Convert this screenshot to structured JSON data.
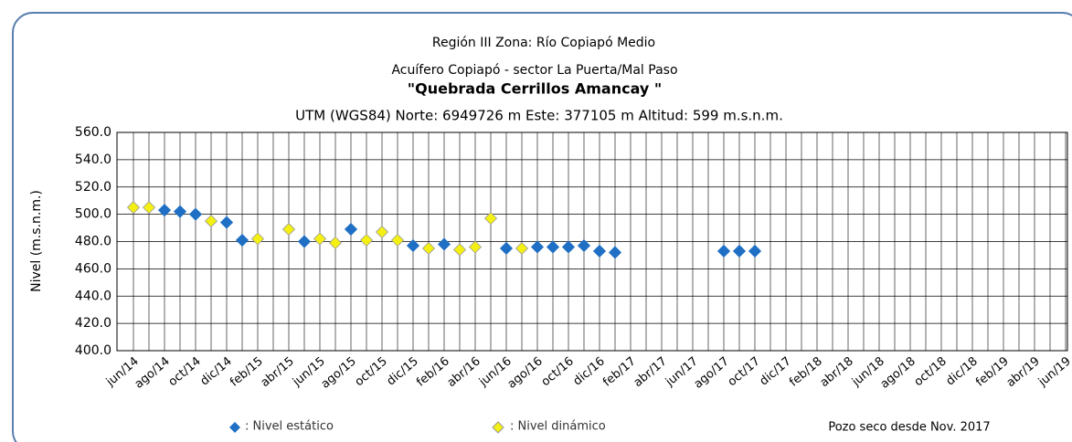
{
  "chart_data": {
    "type": "scatter",
    "title": "Región III  Zona: Río Copiapó Medio",
    "subtitle": "Acuífero Copiapó - sector La Puerta/Mal  Paso",
    "well_name": "\"Quebrada Cerrillos Amancay \"",
    "location": "UTM (WGS84) Norte: 6949726 m    Este: 377105 m Altitud: 599 m.s.n.m.",
    "y_label": "Nivel (m.s.n.m.)",
    "annotation": "Pozo seco desde Nov. 2017",
    "categories": [
      "jun/14",
      null,
      "ago/14",
      null,
      "oct/14",
      null,
      "dic/14",
      null,
      "feb/15",
      null,
      "abr/15",
      null,
      "jun/15",
      null,
      "ago/15",
      null,
      "oct/15",
      null,
      "dic/15",
      null,
      "feb/16",
      null,
      "abr/16",
      null,
      "jun/16",
      null,
      "ago/16",
      null,
      "oct/16",
      null,
      "dic/16",
      null,
      "feb/17",
      null,
      "abr/17",
      null,
      "jun/17",
      null,
      "ago/17",
      null,
      "oct/17",
      null,
      "dic/17",
      null,
      "feb/18",
      null,
      "abr/18",
      null,
      "jun/18",
      null,
      "ago/18",
      null,
      "oct/18",
      null,
      "dic/18",
      null,
      "feb/19",
      null,
      "abr/19",
      null,
      "jun/19"
    ],
    "series": [
      {
        "name": ": Nivel estático",
        "color": "#1f6fc4",
        "values": [
          null,
          null,
          503,
          502,
          500,
          null,
          494,
          481,
          null,
          null,
          null,
          480,
          null,
          null,
          489,
          null,
          null,
          null,
          477,
          null,
          478,
          null,
          null,
          null,
          475,
          null,
          476,
          476,
          476,
          477,
          473,
          472,
          null,
          null,
          null,
          null,
          null,
          null,
          473,
          473,
          473,
          null,
          null,
          null,
          null,
          null,
          null,
          null,
          null,
          null,
          null,
          null,
          null,
          null,
          null,
          null,
          null,
          null,
          null,
          null,
          null
        ]
      },
      {
        "name": ": Nivel dinámico",
        "color": "#f5f014",
        "values": [
          505,
          505,
          null,
          null,
          null,
          495,
          null,
          null,
          482,
          null,
          489,
          null,
          482,
          479,
          null,
          481,
          487,
          481,
          null,
          475,
          null,
          474,
          476,
          497,
          null,
          475,
          null,
          null,
          null,
          null,
          null,
          null,
          null,
          null,
          null,
          null,
          null,
          null,
          null,
          null,
          null,
          null,
          null,
          null,
          null,
          null,
          null,
          null,
          null,
          null,
          null,
          null,
          null,
          null,
          null,
          null,
          null,
          null,
          null,
          null,
          null
        ]
      }
    ],
    "ylim": [
      400,
      560
    ],
    "yticks": [
      {
        "value": 400,
        "label": "400.0"
      },
      {
        "value": 420,
        "label": "420.0"
      },
      {
        "value": 440,
        "label": "440.0"
      },
      {
        "value": 460,
        "label": "460.0"
      },
      {
        "value": 480,
        "label": "480.0"
      },
      {
        "value": 500,
        "label": "500.0"
      },
      {
        "value": 520,
        "label": "520.0"
      },
      {
        "value": 540,
        "label": "540.0"
      },
      {
        "value": 560,
        "label": "560.0"
      }
    ],
    "grid": true
  }
}
